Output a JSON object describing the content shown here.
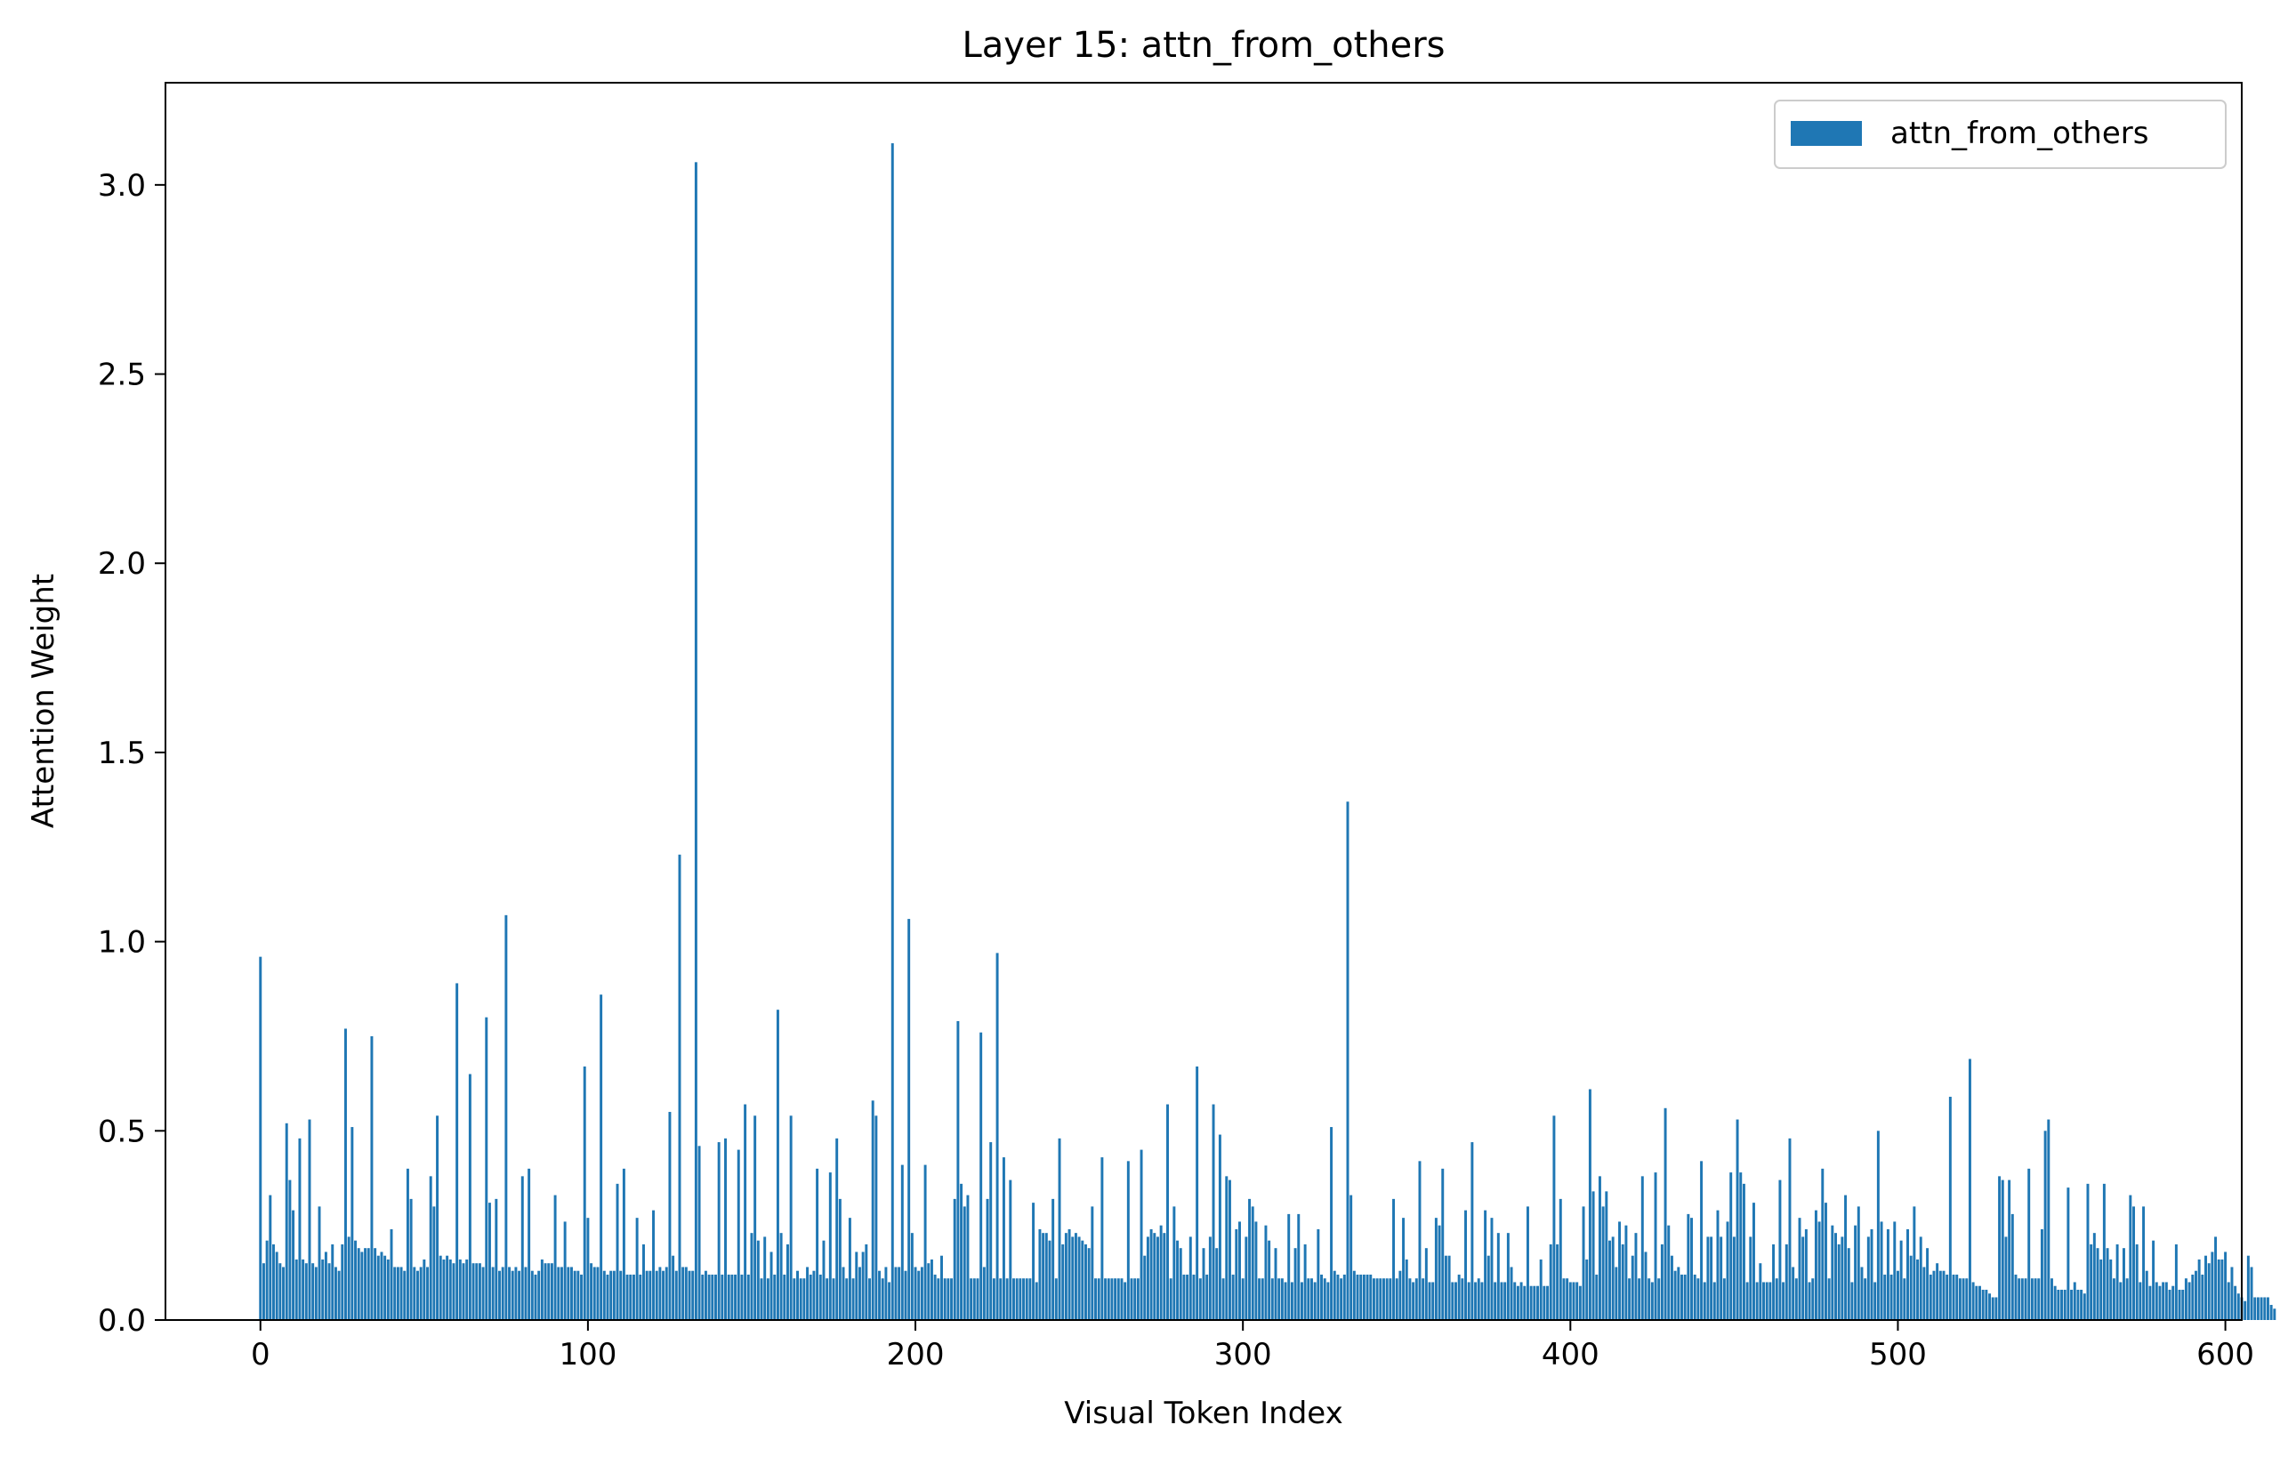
{
  "chart_data": {
    "type": "bar",
    "title": "Layer 15: attn_from_others",
    "xlabel": "Visual Token Index",
    "ylabel": "Attention Weight",
    "xlim": [
      -29,
      605
    ],
    "ylim": [
      0,
      3.27
    ],
    "x_ticks": [
      0,
      100,
      200,
      300,
      400,
      500,
      600
    ],
    "x_tick_labels": [
      "0",
      "100",
      "200",
      "300",
      "400",
      "500",
      "600"
    ],
    "y_ticks": [
      0.0,
      0.5,
      1.0,
      1.5,
      2.0,
      2.5,
      3.0
    ],
    "y_tick_labels": [
      "0.0",
      "0.5",
      "1.0",
      "1.5",
      "2.0",
      "2.5",
      "3.0"
    ],
    "legend": {
      "position": "top-right",
      "entries": [
        "attn_from_others"
      ]
    },
    "grid": false,
    "series": [
      {
        "name": "attn_from_others",
        "color": "#1f77b4",
        "x_start": 0,
        "values": [
          0.96,
          0.15,
          0.21,
          0.33,
          0.2,
          0.18,
          0.15,
          0.14,
          0.52,
          0.37,
          0.29,
          0.16,
          0.48,
          0.16,
          0.15,
          0.53,
          0.15,
          0.14,
          0.3,
          0.16,
          0.18,
          0.15,
          0.2,
          0.14,
          0.13,
          0.2,
          0.77,
          0.22,
          0.51,
          0.21,
          0.19,
          0.18,
          0.19,
          0.19,
          0.75,
          0.19,
          0.17,
          0.18,
          0.17,
          0.16,
          0.24,
          0.14,
          0.14,
          0.14,
          0.13,
          0.4,
          0.32,
          0.14,
          0.13,
          0.14,
          0.16,
          0.14,
          0.38,
          0.3,
          0.54,
          0.17,
          0.16,
          0.17,
          0.16,
          0.15,
          0.89,
          0.16,
          0.15,
          0.16,
          0.65,
          0.15,
          0.15,
          0.15,
          0.14,
          0.8,
          0.31,
          0.14,
          0.32,
          0.13,
          0.14,
          1.07,
          0.14,
          0.13,
          0.14,
          0.13,
          0.38,
          0.14,
          0.4,
          0.13,
          0.12,
          0.13,
          0.16,
          0.15,
          0.15,
          0.15,
          0.33,
          0.14,
          0.14,
          0.26,
          0.14,
          0.14,
          0.13,
          0.13,
          0.12,
          0.67,
          0.27,
          0.15,
          0.14,
          0.14,
          0.86,
          0.13,
          0.12,
          0.13,
          0.13,
          0.36,
          0.13,
          0.4,
          0.12,
          0.12,
          0.12,
          0.27,
          0.12,
          0.2,
          0.13,
          0.13,
          0.29,
          0.13,
          0.14,
          0.13,
          0.14,
          0.55,
          0.17,
          0.13,
          1.23,
          0.14,
          0.14,
          0.13,
          0.13,
          3.06,
          0.46,
          0.12,
          0.13,
          0.12,
          0.12,
          0.12,
          0.47,
          0.12,
          0.48,
          0.12,
          0.12,
          0.12,
          0.45,
          0.12,
          0.57,
          0.12,
          0.23,
          0.54,
          0.21,
          0.11,
          0.22,
          0.11,
          0.18,
          0.12,
          0.82,
          0.23,
          0.12,
          0.2,
          0.54,
          0.11,
          0.13,
          0.11,
          0.11,
          0.14,
          0.12,
          0.13,
          0.4,
          0.12,
          0.21,
          0.11,
          0.39,
          0.11,
          0.48,
          0.32,
          0.14,
          0.11,
          0.27,
          0.11,
          0.18,
          0.14,
          0.18,
          0.2,
          0.11,
          0.58,
          0.54,
          0.13,
          0.11,
          0.14,
          0.1,
          3.11,
          0.14,
          0.14,
          0.41,
          0.13,
          1.06,
          0.23,
          0.14,
          0.13,
          0.14,
          0.41,
          0.15,
          0.16,
          0.12,
          0.11,
          0.17,
          0.11,
          0.11,
          0.11,
          0.32,
          0.79,
          0.36,
          0.3,
          0.33,
          0.11,
          0.11,
          0.11,
          0.76,
          0.14,
          0.32,
          0.47,
          0.11,
          0.97,
          0.11,
          0.43,
          0.11,
          0.37,
          0.11,
          0.11,
          0.11,
          0.11,
          0.11,
          0.11,
          0.31,
          0.1,
          0.24,
          0.23,
          0.23,
          0.21,
          0.32,
          0.11,
          0.48,
          0.2,
          0.23,
          0.24,
          0.22,
          0.23,
          0.22,
          0.21,
          0.2,
          0.19,
          0.3,
          0.11,
          0.11,
          0.43,
          0.11,
          0.11,
          0.11,
          0.11,
          0.11,
          0.11,
          0.1,
          0.42,
          0.11,
          0.11,
          0.11,
          0.45,
          0.17,
          0.22,
          0.24,
          0.23,
          0.22,
          0.25,
          0.23,
          0.57,
          0.11,
          0.3,
          0.21,
          0.19,
          0.12,
          0.12,
          0.22,
          0.12,
          0.67,
          0.11,
          0.19,
          0.12,
          0.22,
          0.57,
          0.19,
          0.49,
          0.11,
          0.38,
          0.37,
          0.12,
          0.24,
          0.26,
          0.11,
          0.22,
          0.32,
          0.3,
          0.26,
          0.11,
          0.11,
          0.25,
          0.21,
          0.11,
          0.19,
          0.11,
          0.11,
          0.1,
          0.28,
          0.1,
          0.19,
          0.28,
          0.1,
          0.2,
          0.11,
          0.11,
          0.1,
          0.24,
          0.12,
          0.11,
          0.1,
          0.51,
          0.13,
          0.12,
          0.11,
          0.12,
          1.37,
          0.33,
          0.13,
          0.12,
          0.12,
          0.12,
          0.12,
          0.12,
          0.11,
          0.11,
          0.11,
          0.11,
          0.11,
          0.11,
          0.32,
          0.11,
          0.13,
          0.27,
          0.16,
          0.11,
          0.1,
          0.11,
          0.42,
          0.11,
          0.19,
          0.1,
          0.1,
          0.27,
          0.25,
          0.4,
          0.17,
          0.17,
          0.1,
          0.1,
          0.12,
          0.11,
          0.29,
          0.1,
          0.47,
          0.1,
          0.11,
          0.1,
          0.29,
          0.17,
          0.27,
          0.1,
          0.23,
          0.1,
          0.1,
          0.23,
          0.14,
          0.1,
          0.09,
          0.1,
          0.09,
          0.3,
          0.09,
          0.09,
          0.09,
          0.16,
          0.09,
          0.09,
          0.2,
          0.54,
          0.2,
          0.32,
          0.11,
          0.11,
          0.1,
          0.1,
          0.1,
          0.09,
          0.3,
          0.16,
          0.61,
          0.34,
          0.12,
          0.38,
          0.3,
          0.34,
          0.21,
          0.22,
          0.14,
          0.26,
          0.2,
          0.25,
          0.11,
          0.17,
          0.23,
          0.11,
          0.38,
          0.18,
          0.11,
          0.1,
          0.39,
          0.11,
          0.2,
          0.56,
          0.25,
          0.17,
          0.13,
          0.14,
          0.12,
          0.12,
          0.28,
          0.27,
          0.12,
          0.11,
          0.42,
          0.1,
          0.22,
          0.22,
          0.1,
          0.29,
          0.22,
          0.11,
          0.26,
          0.39,
          0.22,
          0.53,
          0.39,
          0.36,
          0.1,
          0.22,
          0.31,
          0.1,
          0.15,
          0.1,
          0.1,
          0.1,
          0.2,
          0.11,
          0.37,
          0.1,
          0.2,
          0.48,
          0.14,
          0.11,
          0.27,
          0.22,
          0.24,
          0.1,
          0.11,
          0.29,
          0.26,
          0.4,
          0.31,
          0.11,
          0.25,
          0.23,
          0.2,
          0.22,
          0.33,
          0.19,
          0.1,
          0.25,
          0.3,
          0.14,
          0.11,
          0.22,
          0.24,
          0.1,
          0.5,
          0.26,
          0.12,
          0.24,
          0.12,
          0.26,
          0.13,
          0.21,
          0.11,
          0.24,
          0.17,
          0.3,
          0.16,
          0.22,
          0.14,
          0.19,
          0.12,
          0.13,
          0.15,
          0.13,
          0.13,
          0.12,
          0.59,
          0.12,
          0.12,
          0.11,
          0.11,
          0.11,
          0.69,
          0.1,
          0.09,
          0.09,
          0.08,
          0.08,
          0.07,
          0.06,
          0.06,
          0.38,
          0.37,
          0.22,
          0.37,
          0.28,
          0.12,
          0.11,
          0.11,
          0.11,
          0.4,
          0.11,
          0.11,
          0.11,
          0.24,
          0.5,
          0.53,
          0.11,
          0.09,
          0.08,
          0.08,
          0.08,
          0.35,
          0.08,
          0.1,
          0.08,
          0.08,
          0.07,
          0.36,
          0.2,
          0.23,
          0.19,
          0.16,
          0.36,
          0.19,
          0.16,
          0.11,
          0.2,
          0.1,
          0.19,
          0.11,
          0.33,
          0.3,
          0.2,
          0.1,
          0.3,
          0.13,
          0.09,
          0.21,
          0.1,
          0.09,
          0.1,
          0.1,
          0.08,
          0.09,
          0.2,
          0.08,
          0.08,
          0.11,
          0.1,
          0.12,
          0.13,
          0.16,
          0.12,
          0.17,
          0.15,
          0.18,
          0.22,
          0.16,
          0.16,
          0.18,
          0.1,
          0.14,
          0.09,
          0.07,
          0.06,
          0.05,
          0.17,
          0.14,
          0.06,
          0.06,
          0.06,
          0.06,
          0.06,
          0.04,
          0.03
        ]
      }
    ]
  }
}
